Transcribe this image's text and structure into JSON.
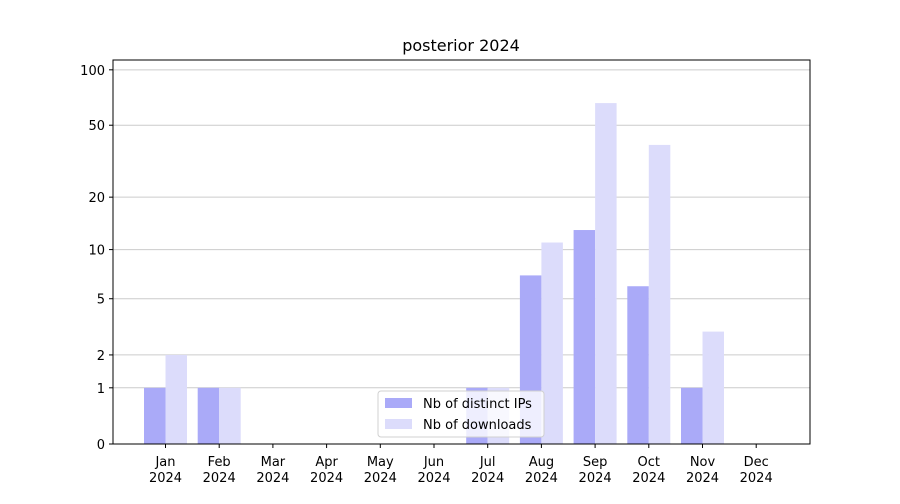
{
  "chart_data": {
    "type": "bar",
    "title": "posterior 2024",
    "categories": [
      [
        "Jan",
        "2024"
      ],
      [
        "Feb",
        "2024"
      ],
      [
        "Mar",
        "2024"
      ],
      [
        "Apr",
        "2024"
      ],
      [
        "May",
        "2024"
      ],
      [
        "Jun",
        "2024"
      ],
      [
        "Jul",
        "2024"
      ],
      [
        "Aug",
        "2024"
      ],
      [
        "Sep",
        "2024"
      ],
      [
        "Oct",
        "2024"
      ],
      [
        "Nov",
        "2024"
      ],
      [
        "Dec",
        "2024"
      ]
    ],
    "series": [
      {
        "name": "Nb of distinct IPs",
        "color": "#aaaaf8",
        "values": [
          1,
          1,
          0,
          0,
          0,
          0,
          1,
          7,
          13,
          6,
          1,
          0
        ]
      },
      {
        "name": "Nb of downloads",
        "color": "#dcdcfb",
        "values": [
          2,
          1,
          0,
          0,
          0,
          0,
          1,
          11,
          66,
          39,
          3,
          0
        ]
      }
    ],
    "yscale": "log1p",
    "ylim": [
      0,
      113
    ],
    "yticks": [
      0,
      1,
      2,
      5,
      10,
      20,
      50,
      100
    ],
    "grid": true,
    "legend": "lower center"
  }
}
